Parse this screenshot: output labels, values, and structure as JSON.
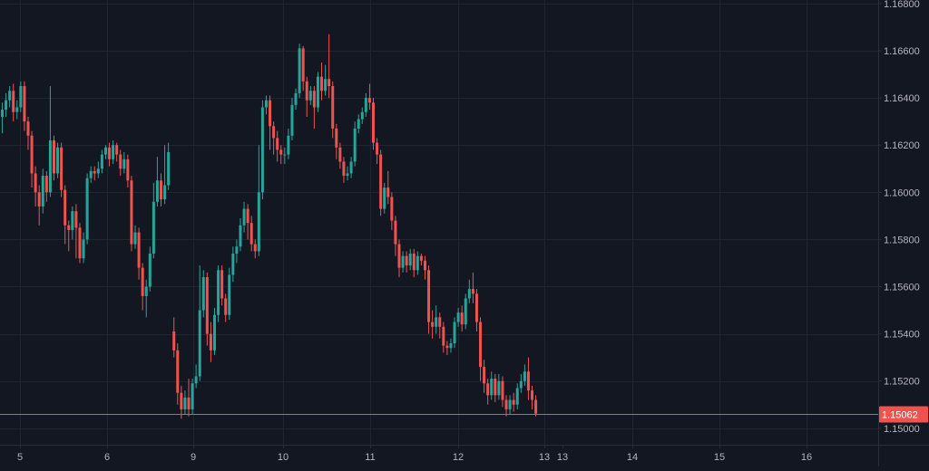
{
  "colors": {
    "background": "#131722",
    "grid": "#1f2533",
    "up": "#26a69a",
    "down": "#ef5350",
    "axis_text": "#b2b5be",
    "axis_line": "#2a2e39",
    "price_line": "#ef5350",
    "price_label_text": "#ffffff"
  },
  "chart_data": {
    "type": "candlestick",
    "title": "",
    "xlabel": "",
    "ylabel": "",
    "grid": true,
    "y_axis_position": "right",
    "ylim": [
      1.1493,
      1.16815
    ],
    "x_tick_labels": [
      "5",
      "6",
      "9",
      "10",
      "11",
      "12",
      "13",
      "13",
      "14",
      "15",
      "16"
    ],
    "y_tick_labels": [
      "1.16800",
      "1.16600",
      "1.16400",
      "1.16200",
      "1.16000",
      "1.15800",
      "1.15600",
      "1.15400",
      "1.15200",
      "1.15000"
    ],
    "y_ticks": [
      1.168,
      1.166,
      1.164,
      1.162,
      1.16,
      1.158,
      1.156,
      1.154,
      1.152,
      1.15
    ],
    "last_price": 1.15062,
    "last_price_label": "1.15062",
    "candles": [
      [
        1.1632,
        1.1635,
        1.1625,
        1.1638
      ],
      [
        1.1635,
        1.1639,
        1.1632,
        1.1642
      ],
      [
        1.1639,
        1.1643,
        1.1636,
        1.1645
      ],
      [
        1.1643,
        1.1634,
        1.163,
        1.1646
      ],
      [
        1.1634,
        1.1636,
        1.1631,
        1.1639
      ],
      [
        1.1636,
        1.1645,
        1.1634,
        1.1647
      ],
      [
        1.1645,
        1.163,
        1.1626,
        1.1647
      ],
      [
        1.163,
        1.1624,
        1.1618,
        1.1632
      ],
      [
        1.1624,
        1.1608,
        1.1602,
        1.1626
      ],
      [
        1.1608,
        1.16,
        1.1594,
        1.1611
      ],
      [
        1.16,
        1.1594,
        1.1586,
        1.1603
      ],
      [
        1.1594,
        1.1607,
        1.1591,
        1.161
      ],
      [
        1.1607,
        1.16,
        1.1596,
        1.1609
      ],
      [
        1.16,
        1.1622,
        1.1598,
        1.1645
      ],
      [
        1.1622,
        1.1608,
        1.1605,
        1.1624
      ],
      [
        1.1608,
        1.1619,
        1.1606,
        1.1621
      ],
      [
        1.1619,
        1.1601,
        1.1598,
        1.1621
      ],
      [
        1.1601,
        1.1586,
        1.1578,
        1.1603
      ],
      [
        1.1586,
        1.1584,
        1.1575,
        1.1588
      ],
      [
        1.1584,
        1.1592,
        1.158,
        1.1594
      ],
      [
        1.1592,
        1.1585,
        1.1572,
        1.1595
      ],
      [
        1.1585,
        1.1572,
        1.157,
        1.1587
      ],
      [
        1.1572,
        1.158,
        1.157,
        1.1583
      ],
      [
        1.158,
        1.1606,
        1.1578,
        1.1608
      ],
      [
        1.1606,
        1.1609,
        1.1604,
        1.1611
      ],
      [
        1.1609,
        1.1608,
        1.1605,
        1.1611
      ],
      [
        1.1608,
        1.161,
        1.1606,
        1.1613
      ],
      [
        1.161,
        1.1616,
        1.1608,
        1.1618
      ],
      [
        1.1616,
        1.1619,
        1.1614,
        1.162
      ],
      [
        1.1619,
        1.1614,
        1.1611,
        1.1621
      ],
      [
        1.1614,
        1.162,
        1.1612,
        1.1622
      ],
      [
        1.162,
        1.1616,
        1.1613,
        1.1621
      ],
      [
        1.1616,
        1.161,
        1.1607,
        1.1618
      ],
      [
        1.161,
        1.1614,
        1.1608,
        1.1617
      ],
      [
        1.1614,
        1.1605,
        1.1602,
        1.1616
      ],
      [
        1.1605,
        1.1578,
        1.1575,
        1.1607
      ],
      [
        1.1578,
        1.1583,
        1.1576,
        1.1586
      ],
      [
        1.1583,
        1.1568,
        1.1563,
        1.1585
      ],
      [
        1.1568,
        1.1556,
        1.155,
        1.157
      ],
      [
        1.1556,
        1.156,
        1.1547,
        1.1563
      ],
      [
        1.156,
        1.1574,
        1.1558,
        1.1577
      ],
      [
        1.1574,
        1.1596,
        1.1572,
        1.1604
      ],
      [
        1.1596,
        1.1605,
        1.1594,
        1.1615
      ],
      [
        1.1605,
        1.1597,
        1.1594,
        1.1608
      ],
      [
        1.1597,
        1.1603,
        1.1595,
        1.162
      ],
      [
        1.1603,
        1.1617,
        1.1601,
        1.1621
      ],
      [
        1.1541,
        1.1533,
        1.153,
        1.1547
      ],
      [
        1.1533,
        1.1515,
        1.151,
        1.1536
      ],
      [
        1.1515,
        1.1508,
        1.1504,
        1.1518
      ],
      [
        1.1508,
        1.1513,
        1.1506,
        1.1516
      ],
      [
        1.1513,
        1.1508,
        1.1505,
        1.1521
      ],
      [
        1.1508,
        1.1519,
        1.1506,
        1.1521
      ],
      [
        1.1519,
        1.1522,
        1.1517,
        1.1527
      ],
      [
        1.1522,
        1.155,
        1.152,
        1.1569
      ],
      [
        1.155,
        1.1564,
        1.1547,
        1.1567
      ],
      [
        1.1564,
        1.154,
        1.1535,
        1.1566
      ],
      [
        1.154,
        1.1533,
        1.1528,
        1.1545
      ],
      [
        1.1533,
        1.1548,
        1.1531,
        1.1551
      ],
      [
        1.1548,
        1.1567,
        1.1545,
        1.1569
      ],
      [
        1.1567,
        1.1555,
        1.1552,
        1.1569
      ],
      [
        1.1555,
        1.1548,
        1.1545,
        1.1557
      ],
      [
        1.1548,
        1.1565,
        1.1546,
        1.1568
      ],
      [
        1.1565,
        1.1574,
        1.1562,
        1.1577
      ],
      [
        1.1574,
        1.1577,
        1.157,
        1.158
      ],
      [
        1.1577,
        1.1586,
        1.1575,
        1.1589
      ],
      [
        1.1586,
        1.1593,
        1.1583,
        1.1596
      ],
      [
        1.1593,
        1.1587,
        1.158,
        1.1595
      ],
      [
        1.1587,
        1.1578,
        1.1575,
        1.159
      ],
      [
        1.1578,
        1.1575,
        1.1572,
        1.158
      ],
      [
        1.1575,
        1.16,
        1.1573,
        1.162
      ],
      [
        1.16,
        1.1636,
        1.1597,
        1.1639
      ],
      [
        1.1636,
        1.1639,
        1.1633,
        1.1641
      ],
      [
        1.1639,
        1.1628,
        1.1618,
        1.1641
      ],
      [
        1.1628,
        1.1623,
        1.1616,
        1.163
      ],
      [
        1.1623,
        1.1618,
        1.1613,
        1.1626
      ],
      [
        1.1618,
        1.1616,
        1.1612,
        1.162
      ],
      [
        1.1616,
        1.1616,
        1.1612,
        1.1619
      ],
      [
        1.1616,
        1.1624,
        1.1614,
        1.1627
      ],
      [
        1.1624,
        1.1637,
        1.1622,
        1.164
      ],
      [
        1.1637,
        1.1642,
        1.1635,
        1.1644
      ],
      [
        1.1642,
        1.1661,
        1.164,
        1.1663
      ],
      [
        1.1661,
        1.1647,
        1.1643,
        1.1662
      ],
      [
        1.1647,
        1.1639,
        1.1632,
        1.1649
      ],
      [
        1.1639,
        1.1643,
        1.1637,
        1.1645
      ],
      [
        1.1643,
        1.1636,
        1.1627,
        1.1645
      ],
      [
        1.1636,
        1.1649,
        1.1634,
        1.1651
      ],
      [
        1.1649,
        1.1643,
        1.1639,
        1.1655
      ],
      [
        1.1643,
        1.1648,
        1.1641,
        1.1654
      ],
      [
        1.1648,
        1.1645,
        1.164,
        1.1667
      ],
      [
        1.1645,
        1.1627,
        1.1623,
        1.1647
      ],
      [
        1.1627,
        1.1619,
        1.1614,
        1.1629
      ],
      [
        1.1619,
        1.1613,
        1.161,
        1.1621
      ],
      [
        1.1613,
        1.1607,
        1.1604,
        1.1615
      ],
      [
        1.1607,
        1.1608,
        1.1605,
        1.1611
      ],
      [
        1.1608,
        1.1613,
        1.1606,
        1.1615
      ],
      [
        1.1613,
        1.1627,
        1.1611,
        1.163
      ],
      [
        1.1627,
        1.1631,
        1.1625,
        1.1633
      ],
      [
        1.1631,
        1.1634,
        1.1629,
        1.1636
      ],
      [
        1.1634,
        1.164,
        1.1632,
        1.1642
      ],
      [
        1.164,
        1.1638,
        1.1635,
        1.1646
      ],
      [
        1.1638,
        1.1621,
        1.1618,
        1.164
      ],
      [
        1.1621,
        1.1616,
        1.1612,
        1.1623
      ],
      [
        1.1616,
        1.1593,
        1.159,
        1.1618
      ],
      [
        1.1593,
        1.1602,
        1.1591,
        1.1604
      ],
      [
        1.1602,
        1.1598,
        1.1595,
        1.1609
      ],
      [
        1.1598,
        1.1588,
        1.1584,
        1.16
      ],
      [
        1.1588,
        1.1578,
        1.1573,
        1.159
      ],
      [
        1.1578,
        1.1568,
        1.1564,
        1.158
      ],
      [
        1.1568,
        1.1573,
        1.1566,
        1.1575
      ],
      [
        1.1573,
        1.1569,
        1.1566,
        1.1575
      ],
      [
        1.1569,
        1.1574,
        1.1567,
        1.1576
      ],
      [
        1.1574,
        1.1567,
        1.1564,
        1.1576
      ],
      [
        1.1567,
        1.1573,
        1.1565,
        1.1575
      ],
      [
        1.1573,
        1.1571,
        1.1569,
        1.1574
      ],
      [
        1.1571,
        1.1567,
        1.1563,
        1.1573
      ],
      [
        1.1567,
        1.1545,
        1.154,
        1.1569
      ],
      [
        1.1545,
        1.1543,
        1.1538,
        1.155
      ],
      [
        1.1543,
        1.1547,
        1.154,
        1.1552
      ],
      [
        1.1547,
        1.1543,
        1.1538,
        1.1549
      ],
      [
        1.1543,
        1.1535,
        1.1532,
        1.1545
      ],
      [
        1.1535,
        1.1534,
        1.1531,
        1.1537
      ],
      [
        1.1534,
        1.1536,
        1.1532,
        1.1538
      ],
      [
        1.1536,
        1.1545,
        1.1534,
        1.1547
      ],
      [
        1.1545,
        1.1549,
        1.1543,
        1.1551
      ],
      [
        1.1549,
        1.1544,
        1.1541,
        1.1552
      ],
      [
        1.1544,
        1.1555,
        1.1542,
        1.1557
      ],
      [
        1.1555,
        1.1559,
        1.1553,
        1.1563
      ],
      [
        1.1559,
        1.1557,
        1.1553,
        1.1566
      ],
      [
        1.1557,
        1.1545,
        1.1541,
        1.1559
      ],
      [
        1.1545,
        1.1526,
        1.152,
        1.1547
      ],
      [
        1.1526,
        1.1519,
        1.1515,
        1.1529
      ],
      [
        1.1519,
        1.1514,
        1.151,
        1.1521
      ],
      [
        1.1514,
        1.1521,
        1.1512,
        1.1524
      ],
      [
        1.1521,
        1.1514,
        1.1511,
        1.1523
      ],
      [
        1.1514,
        1.152,
        1.1512,
        1.1523
      ],
      [
        1.152,
        1.1512,
        1.1509,
        1.1522
      ],
      [
        1.1512,
        1.1508,
        1.1505,
        1.1514
      ],
      [
        1.1508,
        1.1512,
        1.1506,
        1.1514
      ],
      [
        1.1512,
        1.151,
        1.1507,
        1.1515
      ],
      [
        1.151,
        1.1517,
        1.1508,
        1.1519
      ],
      [
        1.1517,
        1.152,
        1.1515,
        1.1523
      ],
      [
        1.152,
        1.1524,
        1.1518,
        1.1527
      ],
      [
        1.1524,
        1.1516,
        1.1512,
        1.153
      ],
      [
        1.1516,
        1.1512,
        1.1508,
        1.1518
      ],
      [
        1.1512,
        1.15062,
        1.1505,
        1.1514
      ]
    ]
  }
}
